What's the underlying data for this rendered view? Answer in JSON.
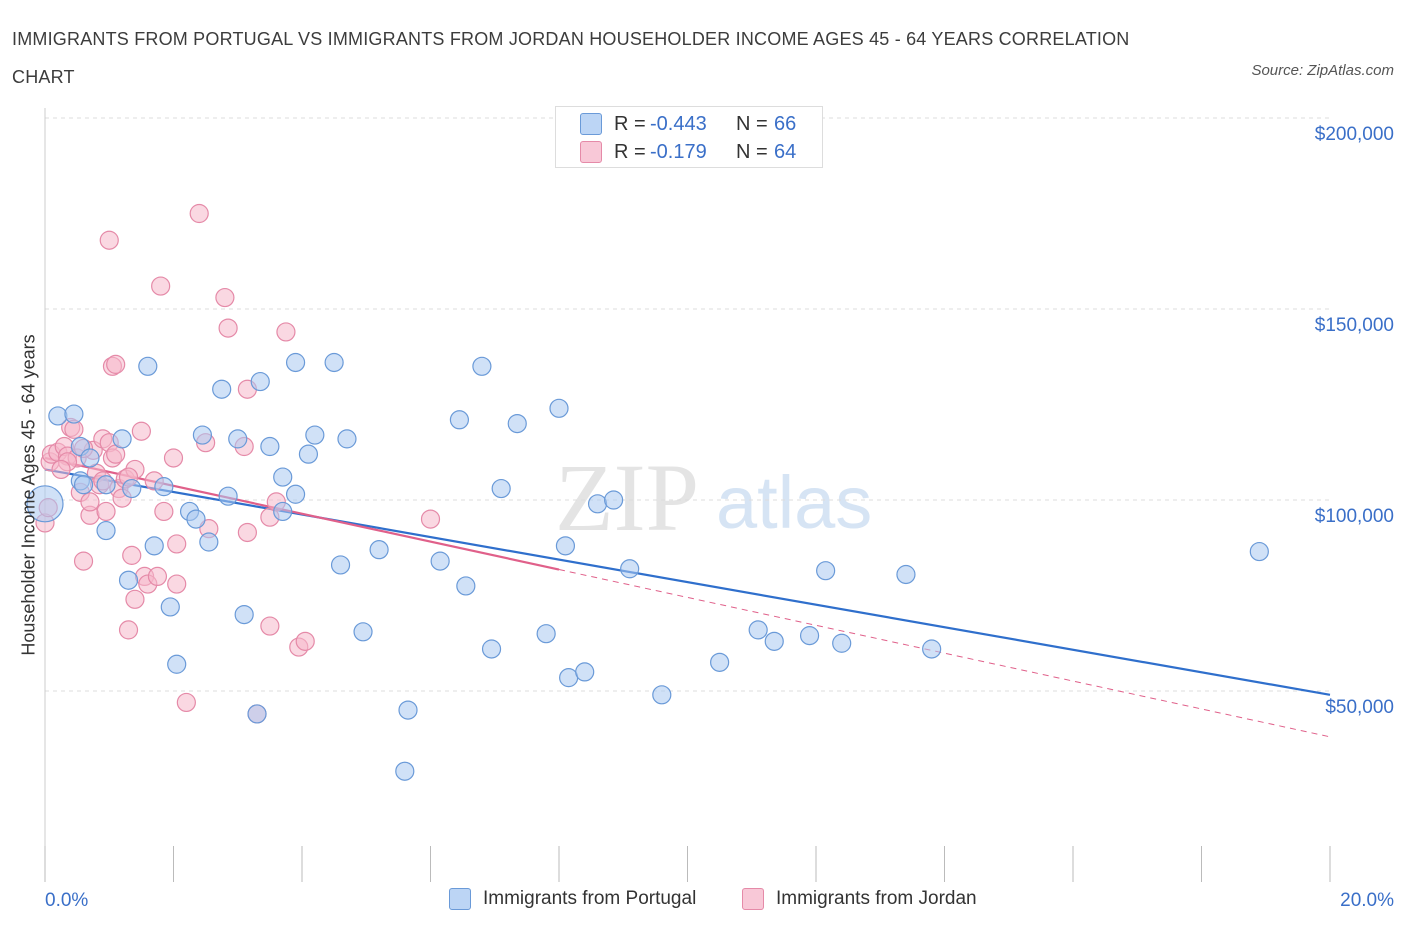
{
  "title": "IMMIGRANTS FROM PORTUGAL VS IMMIGRANTS FROM JORDAN HOUSEHOLDER INCOME AGES 45 - 64 YEARS CORRELATION CHART",
  "source": "Source: ZipAtlas.com",
  "watermark": {
    "zip": "ZIP",
    "atlas": "atlas"
  },
  "legend": {
    "rows": [
      {
        "r_label": "R =",
        "r_value": "-0.443",
        "n_label": "N =",
        "n_value": "66"
      },
      {
        "r_label": "R =",
        "r_value": "-0.179",
        "n_label": "N =",
        "n_value": "64"
      }
    ]
  },
  "bottom_legend": [
    "Immigrants from Portugal",
    "Immigrants from Jordan"
  ],
  "colors": {
    "portugal_fill": "#a9c8f0",
    "portugal_stroke": "#6a9ad8",
    "portugal_line": "#2f6fcc",
    "jordan_fill": "#f6b8cb",
    "jordan_stroke": "#e58aa8",
    "jordan_line": "#e0608a",
    "axis_text": "#3a6fc8",
    "grid": "#dddddd"
  },
  "chart_data": {
    "type": "scatter",
    "title": "IMMIGRANTS FROM PORTUGAL VS IMMIGRANTS FROM JORDAN HOUSEHOLDER INCOME AGES 45 - 64 YEARS CORRELATION CHART",
    "xlabel": "",
    "ylabel": "Householder Income Ages 45 - 64 years",
    "xlim": [
      0,
      20
    ],
    "ylim": [
      0,
      200000
    ],
    "x_tick_labels": [
      "0.0%",
      "20.0%"
    ],
    "y_ticks": [
      50000,
      100000,
      150000,
      200000
    ],
    "y_tick_labels": [
      "$50,000",
      "$100,000",
      "$150,000",
      "$200,000"
    ],
    "grid": true,
    "legend_position": "top-center",
    "series": [
      {
        "name": "Immigrants from Portugal",
        "trend": {
          "x": [
            0.0,
            20.0
          ],
          "y": [
            108000,
            49000
          ],
          "solid_until": 20.0
        },
        "points": [
          [
            0.0,
            99000
          ],
          [
            0.2,
            122000
          ],
          [
            0.45,
            122500
          ],
          [
            0.55,
            114000
          ],
          [
            0.55,
            105000
          ],
          [
            0.6,
            104000
          ],
          [
            0.7,
            111000
          ],
          [
            0.95,
            104000
          ],
          [
            0.95,
            92000
          ],
          [
            1.2,
            116000
          ],
          [
            1.6,
            135000
          ],
          [
            1.35,
            103000
          ],
          [
            1.3,
            79000
          ],
          [
            1.7,
            88000
          ],
          [
            1.85,
            103500
          ],
          [
            1.95,
            72000
          ],
          [
            2.05,
            57000
          ],
          [
            2.25,
            97000
          ],
          [
            2.35,
            95000
          ],
          [
            2.45,
            117000
          ],
          [
            2.55,
            89000
          ],
          [
            2.75,
            129000
          ],
          [
            2.85,
            101000
          ],
          [
            3.0,
            116000
          ],
          [
            3.1,
            70000
          ],
          [
            3.3,
            44000
          ],
          [
            3.35,
            131000
          ],
          [
            3.5,
            114000
          ],
          [
            3.7,
            106000
          ],
          [
            3.7,
            97000
          ],
          [
            3.9,
            101500
          ],
          [
            3.9,
            136000
          ],
          [
            4.1,
            112000
          ],
          [
            4.2,
            117000
          ],
          [
            4.5,
            136000
          ],
          [
            4.6,
            83000
          ],
          [
            4.7,
            116000
          ],
          [
            4.95,
            65500
          ],
          [
            5.2,
            87000
          ],
          [
            5.6,
            29000
          ],
          [
            5.65,
            45000
          ],
          [
            6.15,
            84000
          ],
          [
            6.45,
            121000
          ],
          [
            6.55,
            77500
          ],
          [
            6.8,
            135000
          ],
          [
            6.95,
            61000
          ],
          [
            7.1,
            103000
          ],
          [
            7.35,
            120000
          ],
          [
            7.8,
            65000
          ],
          [
            8.0,
            124000
          ],
          [
            8.1,
            88000
          ],
          [
            8.15,
            53500
          ],
          [
            8.4,
            55000
          ],
          [
            8.6,
            99000
          ],
          [
            8.85,
            100000
          ],
          [
            9.1,
            82000
          ],
          [
            9.6,
            49000
          ],
          [
            10.5,
            57500
          ],
          [
            11.1,
            66000
          ],
          [
            11.35,
            63000
          ],
          [
            11.9,
            64500
          ],
          [
            12.15,
            81500
          ],
          [
            12.4,
            62500
          ],
          [
            13.4,
            80500
          ],
          [
            13.8,
            61000
          ],
          [
            18.9,
            86500
          ]
        ]
      },
      {
        "name": "Immigrants from Jordan",
        "trend": {
          "x": [
            0.0,
            20.0
          ],
          "y": [
            111000,
            38000
          ],
          "solid_until": 8.0
        },
        "points": [
          [
            0.0,
            94000
          ],
          [
            0.05,
            98000
          ],
          [
            0.08,
            110000
          ],
          [
            0.1,
            112000
          ],
          [
            0.2,
            112500
          ],
          [
            0.3,
            114000
          ],
          [
            0.35,
            111500
          ],
          [
            0.4,
            119000
          ],
          [
            0.5,
            111000
          ],
          [
            0.55,
            102000
          ],
          [
            0.6,
            84000
          ],
          [
            0.7,
            96000
          ],
          [
            0.75,
            113000
          ],
          [
            0.8,
            107000
          ],
          [
            0.85,
            104000
          ],
          [
            0.9,
            116000
          ],
          [
            0.9,
            105000
          ],
          [
            0.95,
            97000
          ],
          [
            1.0,
            115000
          ],
          [
            1.0,
            168000
          ],
          [
            1.05,
            111000
          ],
          [
            1.05,
            135000
          ],
          [
            1.1,
            135500
          ],
          [
            1.15,
            103000
          ],
          [
            1.2,
            100500
          ],
          [
            1.25,
            105500
          ],
          [
            1.3,
            66000
          ],
          [
            1.35,
            85500
          ],
          [
            1.4,
            108000
          ],
          [
            1.4,
            74000
          ],
          [
            1.5,
            118000
          ],
          [
            1.55,
            80000
          ],
          [
            1.6,
            78000
          ],
          [
            1.7,
            105000
          ],
          [
            1.75,
            80000
          ],
          [
            1.85,
            97000
          ],
          [
            1.8,
            156000
          ],
          [
            2.0,
            111000
          ],
          [
            2.05,
            78000
          ],
          [
            2.05,
            88500
          ],
          [
            2.2,
            47000
          ],
          [
            2.4,
            175000
          ],
          [
            2.5,
            115000
          ],
          [
            2.55,
            92500
          ],
          [
            2.8,
            153000
          ],
          [
            2.85,
            145000
          ],
          [
            3.1,
            114000
          ],
          [
            3.15,
            91500
          ],
          [
            3.15,
            129000
          ],
          [
            3.3,
            44000
          ],
          [
            3.5,
            95500
          ],
          [
            3.5,
            67000
          ],
          [
            3.6,
            99500
          ],
          [
            3.75,
            144000
          ],
          [
            3.95,
            61500
          ],
          [
            4.05,
            63000
          ],
          [
            6.0,
            95000
          ],
          [
            0.35,
            110000
          ],
          [
            0.6,
            113500
          ],
          [
            1.1,
            112000
          ],
          [
            0.45,
            118500
          ],
          [
            0.25,
            108000
          ],
          [
            1.3,
            106000
          ],
          [
            0.7,
            99500
          ]
        ]
      }
    ]
  }
}
